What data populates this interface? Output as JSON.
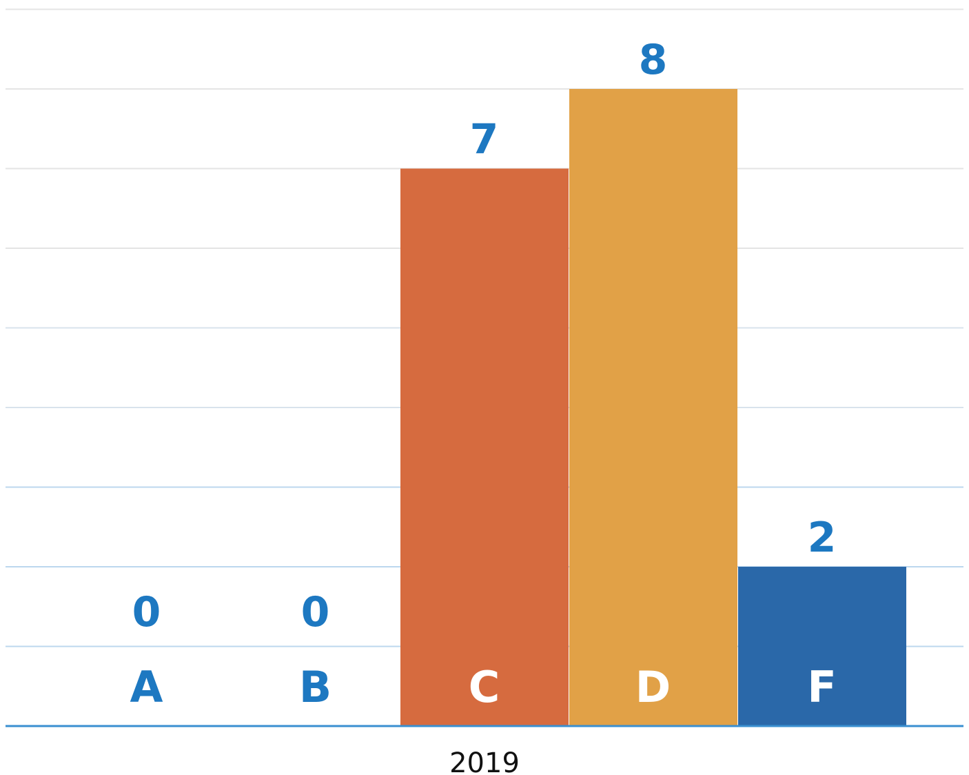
{
  "chart_data": {
    "type": "bar",
    "group_label": "2019",
    "categories": [
      "A",
      "B",
      "C",
      "D",
      "F"
    ],
    "values": [
      0,
      0,
      7,
      8,
      2
    ],
    "ylim": [
      0,
      8
    ],
    "grid": true,
    "legend": "none",
    "colors": {
      "bars": [
        "#d66b3f",
        "#d66b3f",
        "#d66b3f",
        "#e1a147",
        "#2a68a9"
      ],
      "value_label": "#1d78c1",
      "category_label_on_white": "#1d78c1",
      "category_label_on_bar": "#ffffff",
      "axis_line": "#3a8fd0",
      "gridline": "#e4e4e4",
      "x_axis_label": "#111111"
    }
  }
}
